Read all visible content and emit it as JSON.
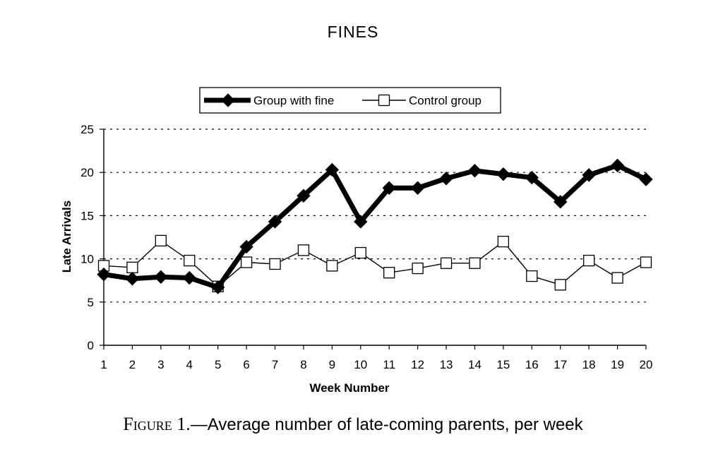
{
  "page": {
    "header": "FINES",
    "caption_label": "Figure 1.",
    "caption_text": "—Average number of late-coming parents, per week"
  },
  "chart_data": {
    "type": "line",
    "xlabel": "Week Number",
    "ylabel": "Late Arrivals",
    "x": [
      1,
      2,
      3,
      4,
      5,
      6,
      7,
      8,
      9,
      10,
      11,
      12,
      13,
      14,
      15,
      16,
      17,
      18,
      19,
      20
    ],
    "ylim": [
      0,
      25
    ],
    "yticks": [
      0,
      5,
      10,
      15,
      20,
      25
    ],
    "grid": "dotted-horizontal",
    "legend_position": "top",
    "series": [
      {
        "name": "Group with fine",
        "marker": "filled-diamond",
        "color": "#000000",
        "values": [
          8.2,
          7.7,
          7.9,
          7.8,
          6.7,
          11.4,
          14.3,
          17.3,
          20.3,
          14.3,
          18.2,
          18.2,
          19.3,
          20.2,
          19.8,
          19.4,
          16.6,
          19.7,
          20.8,
          19.2
        ]
      },
      {
        "name": "Control group",
        "marker": "open-square",
        "color": "#000000",
        "values": [
          9.2,
          9.0,
          12.1,
          9.8,
          6.8,
          9.6,
          9.4,
          11.0,
          9.2,
          10.7,
          8.4,
          8.9,
          9.5,
          9.5,
          12.0,
          8.0,
          7.0,
          9.8,
          7.8,
          9.6
        ]
      }
    ]
  }
}
